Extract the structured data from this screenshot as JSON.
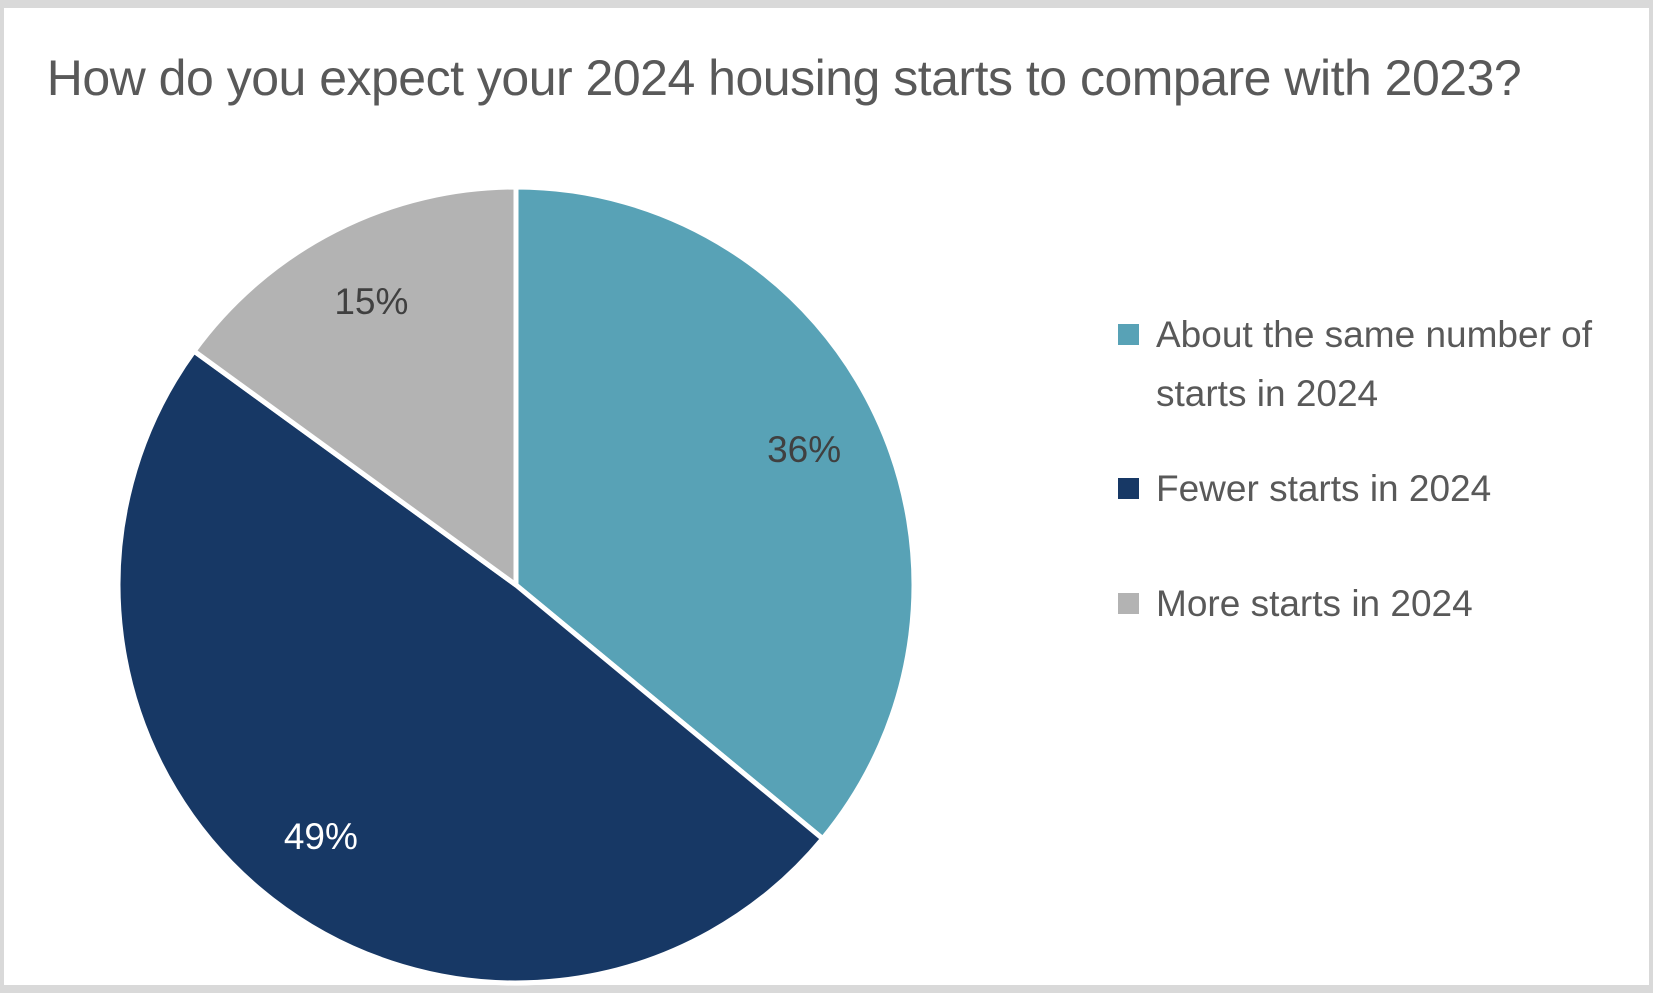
{
  "frame": {
    "background": "#ffffff",
    "border_color": "#d9d9d9"
  },
  "chart_data": {
    "type": "pie",
    "title": "How do you expect your 2024 housing starts to compare with 2023?",
    "title_color": "#595959",
    "legend_position": "right",
    "legend_text_color": "#595959",
    "start_angle_deg": 0,
    "direction": "clockwise",
    "separator_color": "#ffffff",
    "slices": [
      {
        "label": "About the same number of starts in 2024",
        "value_pct": 36,
        "data_label": "36%",
        "color": "#58A2B6",
        "data_label_color": "#404040"
      },
      {
        "label": "Fewer starts in 2024",
        "value_pct": 49,
        "data_label": "49%",
        "color": "#173865",
        "data_label_color": "#ffffff"
      },
      {
        "label": "More starts in 2024",
        "value_pct": 15,
        "data_label": "15%",
        "color": "#B3B3B3",
        "data_label_color": "#404040"
      }
    ]
  }
}
